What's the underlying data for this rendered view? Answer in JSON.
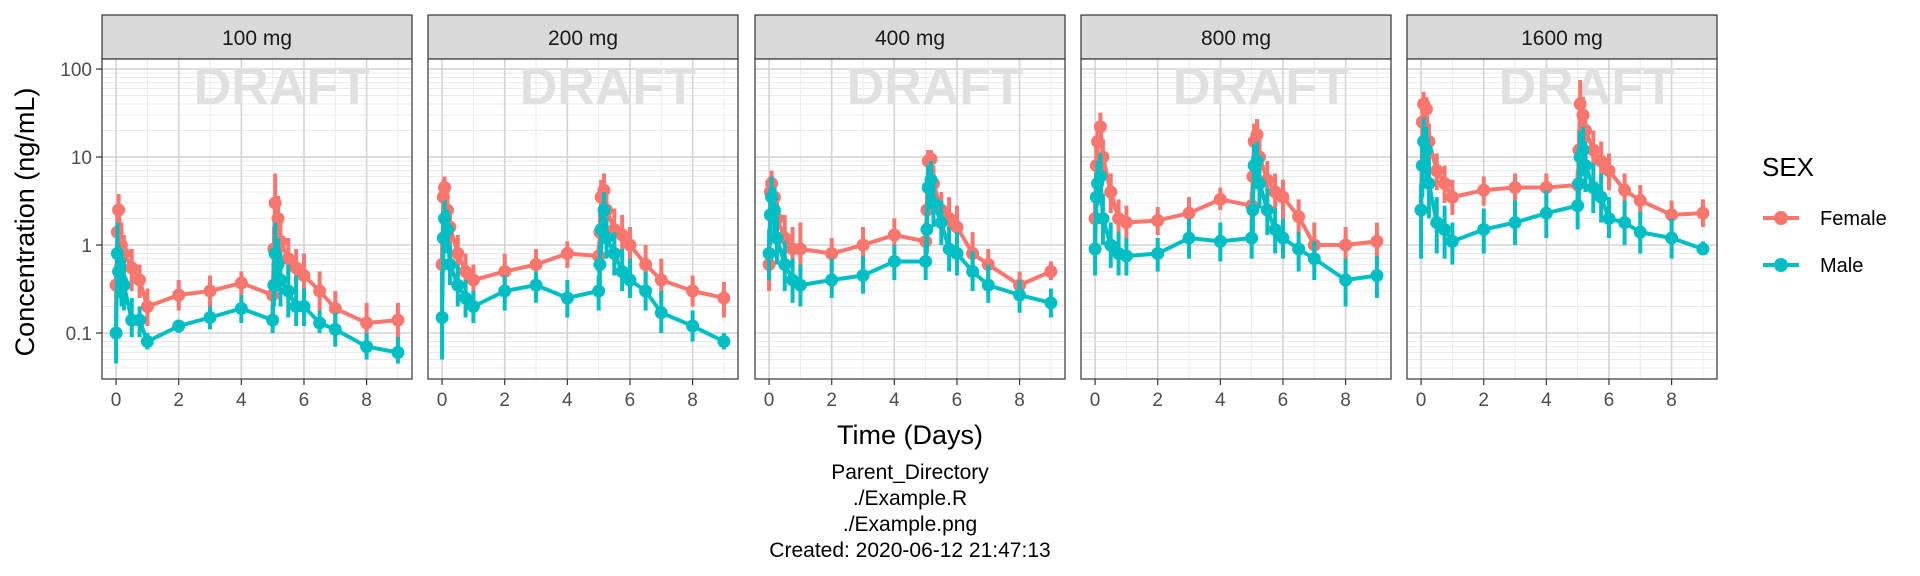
{
  "chart_data": {
    "type": "line",
    "ylabel": "Concentration (ng/mL)",
    "xlabel": "Time (Days)",
    "yscale": "log",
    "ylim": [
      0.03,
      130
    ],
    "xlim": [
      -0.45,
      9.45
    ],
    "x_ticks": [
      0,
      2,
      4,
      6,
      8
    ],
    "y_ticks": [
      0.1,
      1,
      10,
      100
    ],
    "y_tick_labels": [
      "0.1",
      "1",
      "10",
      "100"
    ],
    "grid": true,
    "watermark": "DRAFT",
    "legend": {
      "title": "SEX",
      "placement": "right"
    },
    "series_colors": {
      "Female": "#F8766D",
      "Male": "#00BFC4"
    },
    "time_points": [
      0,
      0.04,
      0.08,
      0.17,
      0.25,
      0.5,
      0.75,
      1,
      2,
      3,
      4,
      5,
      5.04,
      5.08,
      5.17,
      5.25,
      5.5,
      5.75,
      6,
      6.5,
      7,
      8,
      9
    ],
    "panels": [
      {
        "label": "100 mg",
        "series": [
          {
            "name": "Female",
            "values": [
              0.35,
              1.4,
              2.5,
              1.0,
              0.8,
              0.55,
              0.4,
              0.2,
              0.27,
              0.3,
              0.37,
              0.27,
              0.9,
              3.0,
              2.0,
              1.1,
              0.7,
              0.55,
              0.45,
              0.3,
              0.19,
              0.13,
              0.14
            ],
            "lower": [
              0.2,
              0.8,
              1.5,
              0.6,
              0.5,
              0.3,
              0.25,
              0.12,
              0.18,
              0.2,
              0.27,
              0.18,
              0.5,
              1.6,
              1.1,
              0.6,
              0.4,
              0.3,
              0.25,
              0.18,
              0.12,
              0.08,
              0.08
            ],
            "upper": [
              0.6,
              2.5,
              3.8,
              1.8,
              1.3,
              0.9,
              0.6,
              0.32,
              0.4,
              0.45,
              0.5,
              0.4,
              1.6,
              6.5,
              3.6,
              2.0,
              1.2,
              0.9,
              0.8,
              0.5,
              0.3,
              0.22,
              0.22
            ]
          },
          {
            "name": "Male",
            "values": [
              0.1,
              0.8,
              0.5,
              0.4,
              0.35,
              0.14,
              0.14,
              0.08,
              0.12,
              0.15,
              0.19,
              0.14,
              0.35,
              0.8,
              0.6,
              0.4,
              0.3,
              0.2,
              0.2,
              0.13,
              0.11,
              0.07,
              0.06
            ],
            "lower": [
              0.045,
              0.3,
              0.25,
              0.2,
              0.18,
              0.09,
              0.09,
              0.065,
              0.1,
              0.11,
              0.13,
              0.1,
              0.2,
              0.4,
              0.3,
              0.2,
              0.15,
              0.12,
              0.12,
              0.1,
              0.07,
              0.05,
              0.045
            ],
            "upper": [
              0.2,
              1.8,
              1.0,
              0.8,
              0.7,
              0.25,
              0.2,
              0.1,
              0.14,
              0.2,
              0.27,
              0.2,
              0.6,
              1.8,
              1.2,
              0.8,
              0.6,
              0.45,
              0.32,
              0.18,
              0.17,
              0.1,
              0.09
            ]
          }
        ]
      },
      {
        "label": "200 mg",
        "series": [
          {
            "name": "Female",
            "values": [
              0.6,
              3.5,
              4.5,
              2.5,
              1.6,
              0.8,
              0.5,
              0.4,
              0.5,
              0.6,
              0.8,
              0.75,
              1.4,
              3.5,
              4.2,
              2.5,
              1.5,
              1.3,
              1.0,
              0.6,
              0.4,
              0.3,
              0.25
            ],
            "lower": [
              0.3,
              2.0,
              2.8,
              1.5,
              0.9,
              0.45,
              0.3,
              0.25,
              0.3,
              0.4,
              0.55,
              0.5,
              0.8,
              2.0,
              2.5,
              1.5,
              0.9,
              0.7,
              0.55,
              0.35,
              0.25,
              0.2,
              0.15
            ],
            "upper": [
              1.2,
              5.5,
              6.0,
              4.0,
              2.5,
              1.3,
              0.8,
              0.6,
              0.8,
              0.9,
              1.1,
              1.0,
              2.5,
              5.5,
              6.5,
              4.0,
              2.6,
              2.2,
              1.6,
              1.0,
              0.7,
              0.45,
              0.38
            ]
          },
          {
            "name": "Male",
            "values": [
              0.15,
              1.2,
              2.0,
              1.5,
              0.6,
              0.35,
              0.25,
              0.2,
              0.3,
              0.35,
              0.25,
              0.3,
              0.6,
              1.5,
              2.5,
              1.2,
              0.8,
              0.5,
              0.4,
              0.3,
              0.17,
              0.12,
              0.08
            ],
            "lower": [
              0.05,
              0.5,
              1.0,
              0.8,
              0.35,
              0.2,
              0.15,
              0.13,
              0.18,
              0.22,
              0.15,
              0.18,
              0.35,
              0.8,
              1.3,
              0.7,
              0.45,
              0.3,
              0.25,
              0.18,
              0.1,
              0.08,
              0.065
            ],
            "upper": [
              0.5,
              2.5,
              3.2,
              2.5,
              1.0,
              0.6,
              0.4,
              0.3,
              0.45,
              0.5,
              0.4,
              0.45,
              1.0,
              2.5,
              4.0,
              2.0,
              1.4,
              0.9,
              0.7,
              0.5,
              0.3,
              0.18,
              0.1
            ]
          }
        ]
      },
      {
        "label": "400 mg",
        "series": [
          {
            "name": "Female",
            "values": [
              0.6,
              4.0,
              5.0,
              3.5,
              2.0,
              1.2,
              0.9,
              0.9,
              0.8,
              1.0,
              1.3,
              1.1,
              2.5,
              9.0,
              9.5,
              5.0,
              2.5,
              2.0,
              1.6,
              0.8,
              0.6,
              0.35,
              0.5
            ],
            "lower": [
              0.3,
              2.5,
              3.0,
              2.0,
              1.2,
              0.7,
              0.5,
              0.5,
              0.5,
              0.6,
              0.8,
              0.7,
              1.5,
              5.5,
              6.0,
              3.0,
              1.5,
              1.2,
              0.9,
              0.5,
              0.4,
              0.25,
              0.4
            ],
            "upper": [
              1.2,
              6.0,
              7.0,
              5.5,
              3.5,
              2.2,
              1.6,
              1.8,
              1.2,
              1.6,
              2.0,
              1.8,
              4.5,
              12.0,
              12.0,
              8.0,
              4.0,
              3.5,
              2.8,
              1.4,
              0.9,
              0.5,
              0.65
            ]
          },
          {
            "name": "Male",
            "values": [
              0.8,
              2.2,
              3.5,
              2.5,
              1.2,
              0.6,
              0.4,
              0.35,
              0.4,
              0.45,
              0.65,
              0.65,
              1.5,
              4.5,
              5.5,
              3.0,
              1.8,
              0.9,
              0.8,
              0.5,
              0.35,
              0.27,
              0.22
            ],
            "lower": [
              0.4,
              1.0,
              2.0,
              1.3,
              0.6,
              0.3,
              0.22,
              0.2,
              0.25,
              0.28,
              0.4,
              0.4,
              0.8,
              2.5,
              3.2,
              1.6,
              1.0,
              0.5,
              0.45,
              0.3,
              0.22,
              0.17,
              0.15
            ],
            "upper": [
              1.5,
              4.5,
              6.0,
              4.5,
              2.2,
              1.1,
              0.7,
              0.6,
              0.7,
              0.75,
              1.0,
              1.0,
              2.8,
              8.0,
              9.0,
              5.0,
              3.2,
              1.6,
              1.4,
              0.85,
              0.6,
              0.4,
              0.32
            ]
          }
        ]
      },
      {
        "label": "800 mg",
        "series": [
          {
            "name": "Female",
            "values": [
              2.0,
              8.0,
              15.0,
              22.0,
              10.0,
              4.0,
              2.0,
              1.8,
              1.9,
              2.3,
              3.3,
              2.8,
              6.0,
              15.0,
              18.0,
              10.0,
              5.5,
              4.0,
              3.5,
              2.1,
              1.0,
              1.0,
              1.1
            ],
            "lower": [
              1.2,
              4.5,
              9.0,
              14.0,
              6.0,
              2.3,
              1.2,
              1.1,
              1.3,
              1.6,
              2.5,
              2.0,
              3.5,
              9.0,
              11.0,
              6.0,
              3.2,
              2.3,
              2.0,
              1.3,
              0.6,
              0.6,
              0.6
            ],
            "upper": [
              3.5,
              13.0,
              24.0,
              32.0,
              16.0,
              6.5,
              3.3,
              2.8,
              2.7,
              3.5,
              4.5,
              4.0,
              10.0,
              24.0,
              27.0,
              16.0,
              9.0,
              6.5,
              5.5,
              3.3,
              1.8,
              1.6,
              1.8
            ]
          },
          {
            "name": "Male",
            "values": [
              0.9,
              3.5,
              5.0,
              6.0,
              2.0,
              1.0,
              0.8,
              0.75,
              0.8,
              1.2,
              1.1,
              1.2,
              2.5,
              8.0,
              9.0,
              5.0,
              2.5,
              1.5,
              1.2,
              0.9,
              0.7,
              0.4,
              0.45
            ],
            "lower": [
              0.45,
              1.8,
              2.8,
              3.0,
              1.0,
              0.55,
              0.45,
              0.45,
              0.5,
              0.7,
              0.65,
              0.7,
              1.3,
              4.5,
              5.0,
              2.6,
              1.3,
              0.8,
              0.7,
              0.5,
              0.4,
              0.2,
              0.25
            ],
            "upper": [
              1.8,
              6.5,
              9.0,
              11.0,
              3.8,
              1.8,
              1.4,
              1.2,
              1.2,
              2.0,
              1.8,
              2.0,
              4.5,
              14.0,
              15.0,
              9.0,
              4.5,
              2.6,
              2.0,
              1.4,
              1.1,
              0.7,
              0.75
            ]
          }
        ]
      },
      {
        "label": "1600 mg",
        "series": [
          {
            "name": "Female",
            "values": [
              2.5,
              25.0,
              40.0,
              35.0,
              15.0,
              7.0,
              5.0,
              3.5,
              4.2,
              4.5,
              4.5,
              4.8,
              12.0,
              40.0,
              30.0,
              20.0,
              12.0,
              9.0,
              7.0,
              4.2,
              3.2,
              2.2,
              2.3
            ],
            "lower": [
              1.5,
              15.0,
              25.0,
              22.0,
              9.0,
              4.2,
              3.0,
              2.2,
              2.8,
              3.0,
              3.1,
              3.2,
              7.0,
              25.0,
              18.0,
              12.0,
              7.0,
              5.5,
              4.2,
              2.7,
              2.1,
              1.5,
              1.6
            ],
            "upper": [
              4.0,
              40.0,
              55.0,
              48.0,
              24.0,
              11.0,
              8.0,
              5.5,
              6.0,
              6.5,
              6.5,
              7.0,
              20.0,
              75.0,
              48.0,
              32.0,
              20.0,
              15.0,
              11.0,
              6.5,
              4.8,
              3.2,
              3.3
            ]
          },
          {
            "name": "Male",
            "values": [
              2.5,
              8.0,
              15.0,
              12.0,
              5.0,
              1.8,
              1.5,
              1.1,
              1.5,
              1.8,
              2.3,
              2.8,
              5.0,
              10.0,
              12.0,
              8.0,
              4.5,
              3.5,
              2.0,
              1.8,
              1.4,
              1.2,
              0.9
            ],
            "lower": [
              0.7,
              3.5,
              6.5,
              5.0,
              2.0,
              0.8,
              0.7,
              0.6,
              0.8,
              1.0,
              1.2,
              1.5,
              2.5,
              5.0,
              6.0,
              4.0,
              2.3,
              1.8,
              1.2,
              1.0,
              0.8,
              0.7,
              0.8
            ],
            "upper": [
              5.0,
              15.0,
              28.0,
              22.0,
              10.0,
              3.5,
              2.8,
              1.8,
              2.6,
              3.2,
              4.2,
              5.0,
              9.0,
              20.0,
              22.0,
              15.0,
              8.5,
              6.5,
              3.5,
              3.2,
              2.4,
              2.0,
              1.1
            ]
          }
        ]
      }
    ]
  },
  "caption": {
    "line1": "Parent_Directory",
    "line2": "./Example.R",
    "line3": "./Example.png",
    "line4": "Created: 2020-06-12 21:47:13"
  }
}
